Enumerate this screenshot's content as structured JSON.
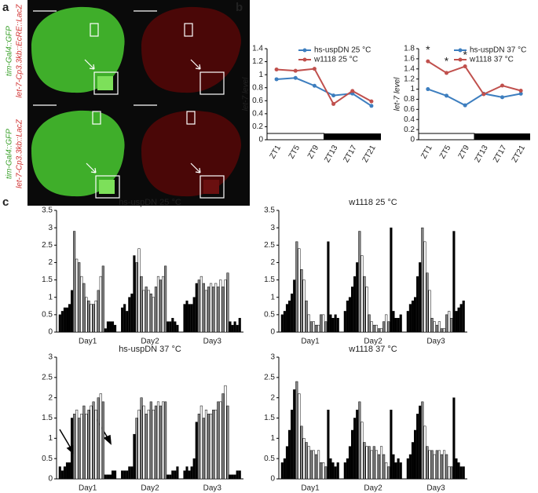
{
  "panel_a": {
    "label": "a",
    "rows": [
      {
        "green": "tim-Gal4::GFP",
        "red": "let-7-Cp3.3kb::EcRE::LacZ"
      },
      {
        "green": "tim-Gal4::GFP",
        "red": "let-7-Cp3.3kb::LacZ"
      }
    ]
  },
  "panel_labels": {
    "b": "b",
    "c": "c"
  },
  "chart_data": [
    {
      "type": "line",
      "y_label": "let-7 level",
      "categories": [
        "ZT1",
        "ZT5",
        "ZT9",
        "ZT13",
        "ZT17",
        "ZT21"
      ],
      "ylim": [
        0,
        1.4
      ],
      "yticks": [
        0,
        0.2,
        0.4,
        0.6,
        0.8,
        1,
        1.2,
        1.4
      ],
      "series": [
        {
          "name": "hs-uspDN 25 °C",
          "color": "#3d7ebf",
          "values": [
            0.93,
            0.95,
            0.83,
            0.68,
            0.71,
            0.52
          ]
        },
        {
          "name": "w1118 25 °C",
          "color": "#c0504d",
          "values": [
            1.08,
            1.06,
            1.09,
            0.55,
            0.75,
            0.59
          ]
        }
      ]
    },
    {
      "type": "line",
      "y_label": "let-7 level",
      "categories": [
        "ZT1",
        "ZT5",
        "ZT9",
        "ZT13",
        "ZT17",
        "ZT21"
      ],
      "ylim": [
        0,
        1.8
      ],
      "yticks": [
        0,
        0.2,
        0.4,
        0.6,
        0.8,
        1,
        1.2,
        1.4,
        1.6,
        1.8
      ],
      "series": [
        {
          "name": "hs-uspDN 37 °C",
          "color": "#3d7ebf",
          "values": [
            1.0,
            0.87,
            0.68,
            0.91,
            0.84,
            0.91
          ]
        },
        {
          "name": "w1118 37 °C",
          "color": "#c0504d",
          "values": [
            1.55,
            1.32,
            1.45,
            0.9,
            1.07,
            0.97
          ]
        }
      ],
      "annotations": [
        {
          "text": "*",
          "category": 0
        },
        {
          "text": "*",
          "category": 1
        },
        {
          "text": "*",
          "category": 2
        }
      ]
    },
    {
      "type": "bar",
      "title": "hs-uspDN 25 °C",
      "categories": [
        "Day1",
        "Day2",
        "Day3"
      ],
      "ylim": [
        0,
        3.5
      ],
      "yticks": [
        0,
        0.5,
        1,
        1.5,
        2,
        2.5,
        3,
        3.5
      ],
      "bar_colors": [
        "#000",
        "#000",
        "#000",
        "#000",
        "#000",
        "#000",
        "#888",
        "#fff",
        "#888",
        "#fff",
        "#888",
        "#fff",
        "#888",
        "#fff",
        "#888",
        "#fff",
        "#888",
        "#fff",
        "#888",
        "#000",
        "#000",
        "#000",
        "#000",
        "#000"
      ],
      "values": [
        [
          0.5,
          0.6,
          0.7,
          0.7,
          0.8,
          1.2,
          2.9,
          2.1,
          2.0,
          1.6,
          1.4,
          1.0,
          0.9,
          0.8,
          0.8,
          0.9,
          1.2,
          1.6,
          1.9,
          0.1,
          0.3,
          0.3,
          0.3,
          0.2
        ],
        [
          0.7,
          0.8,
          0.6,
          1.0,
          1.1,
          2.2,
          2.0,
          2.4,
          1.6,
          1.2,
          1.3,
          1.2,
          1.1,
          1.0,
          1.3,
          1.6,
          1.5,
          1.6,
          1.9,
          0.3,
          0.3,
          0.4,
          0.3,
          0.2
        ],
        [
          0.8,
          0.9,
          0.8,
          0.8,
          1.0,
          1.4,
          1.5,
          1.6,
          1.4,
          1.2,
          1.3,
          1.4,
          1.3,
          1.4,
          1.3,
          1.5,
          1.3,
          1.5,
          1.7,
          0.3,
          0.2,
          0.3,
          0.2,
          0.4
        ]
      ]
    },
    {
      "type": "bar",
      "title": "w1118 25 °C",
      "categories": [
        "Day1",
        "Day2",
        "Day3"
      ],
      "ylim": [
        0,
        3.5
      ],
      "yticks": [
        0,
        0.5,
        1,
        1.5,
        2,
        2.5,
        3,
        3.5
      ],
      "bar_colors": [
        "#000",
        "#000",
        "#000",
        "#000",
        "#000",
        "#000",
        "#888",
        "#fff",
        "#888",
        "#fff",
        "#888",
        "#fff",
        "#888",
        "#fff",
        "#888",
        "#fff",
        "#888",
        "#fff",
        "#888",
        "#000",
        "#000",
        "#000",
        "#000",
        "#000"
      ],
      "values": [
        [
          0.5,
          0.6,
          0.8,
          0.9,
          1.1,
          1.5,
          2.6,
          2.4,
          1.8,
          1.5,
          0.9,
          0.5,
          0.3,
          0.3,
          0.2,
          0.2,
          0.5,
          0.5,
          0.3,
          2.6,
          0.5,
          0.4,
          0.5,
          0.4
        ],
        [
          0.6,
          0.9,
          1.0,
          1.3,
          1.6,
          2.0,
          2.9,
          2.2,
          1.6,
          1.3,
          0.5,
          0.3,
          0.2,
          0.2,
          0.1,
          0.1,
          0.3,
          0.5,
          0.3,
          3.0,
          0.6,
          0.4,
          0.4,
          0.5
        ],
        [
          0.6,
          0.8,
          0.9,
          1.0,
          1.6,
          2.0,
          3.0,
          2.6,
          1.7,
          1.2,
          0.4,
          0.3,
          0.2,
          0.3,
          0.1,
          0.1,
          0.5,
          0.6,
          0.4,
          2.9,
          0.6,
          0.7,
          0.8,
          0.9
        ]
      ]
    },
    {
      "type": "bar",
      "title": "hs-uspDN 37 °C",
      "categories": [
        "Day1",
        "Day2",
        "Day3"
      ],
      "ylim": [
        0,
        3
      ],
      "yticks": [
        0,
        0.5,
        1,
        1.5,
        2,
        2.5,
        3
      ],
      "bar_colors": [
        "#000",
        "#000",
        "#000",
        "#000",
        "#000",
        "#000",
        "#888",
        "#fff",
        "#888",
        "#fff",
        "#888",
        "#fff",
        "#888",
        "#fff",
        "#888",
        "#fff",
        "#888",
        "#fff",
        "#888",
        "#000",
        "#000",
        "#000",
        "#000",
        "#000"
      ],
      "values": [
        [
          0.3,
          0.2,
          0.3,
          0.4,
          0.4,
          1.5,
          1.6,
          1.7,
          1.5,
          1.6,
          1.8,
          1.6,
          1.7,
          1.8,
          1.9,
          1.7,
          2.0,
          2.1,
          1.9,
          0.1,
          0.1,
          0.1,
          0.2,
          0.2
        ],
        [
          0.2,
          0.2,
          0.2,
          0.3,
          0.3,
          1.1,
          1.5,
          1.7,
          2.0,
          1.8,
          1.6,
          1.7,
          1.9,
          1.7,
          1.8,
          1.9,
          1.8,
          1.9,
          1.9,
          0.1,
          0.1,
          0.2,
          0.2,
          0.3
        ],
        [
          0.2,
          0.3,
          0.2,
          0.3,
          0.5,
          1.4,
          1.6,
          1.8,
          1.5,
          1.7,
          1.6,
          1.6,
          1.7,
          1.7,
          1.9,
          1.9,
          2.1,
          2.3,
          1.8,
          0.1,
          0.1,
          0.1,
          0.2,
          0.2
        ]
      ]
    },
    {
      "type": "bar",
      "title": "w1118 37 °C",
      "categories": [
        "Day1",
        "Day2",
        "Day3"
      ],
      "ylim": [
        0,
        3
      ],
      "yticks": [
        0,
        0.5,
        1,
        1.5,
        2,
        2.5,
        3
      ],
      "bar_colors": [
        "#000",
        "#000",
        "#000",
        "#000",
        "#000",
        "#000",
        "#888",
        "#fff",
        "#888",
        "#fff",
        "#888",
        "#fff",
        "#888",
        "#fff",
        "#888",
        "#fff",
        "#888",
        "#fff",
        "#888",
        "#000",
        "#000",
        "#000",
        "#000",
        "#000"
      ],
      "values": [
        [
          0.4,
          0.5,
          0.8,
          1.2,
          1.7,
          2.2,
          2.4,
          2.1,
          1.3,
          1.0,
          0.9,
          0.8,
          0.7,
          0.7,
          0.6,
          0.7,
          0.4,
          0.4,
          0.3,
          1.7,
          0.5,
          0.4,
          0.3,
          0.4
        ],
        [
          0.4,
          0.5,
          0.8,
          1.2,
          1.5,
          1.7,
          1.9,
          1.4,
          0.9,
          0.8,
          0.8,
          0.7,
          0.8,
          0.7,
          0.6,
          0.8,
          0.6,
          0.4,
          0.3,
          1.7,
          0.6,
          0.4,
          0.5,
          0.4
        ],
        [
          0.5,
          0.6,
          0.9,
          1.2,
          1.6,
          1.8,
          1.9,
          1.3,
          0.8,
          0.7,
          0.7,
          0.6,
          0.7,
          0.7,
          0.6,
          0.7,
          0.6,
          0.3,
          0.3,
          2.0,
          0.5,
          0.4,
          0.3,
          0.3
        ]
      ]
    }
  ]
}
